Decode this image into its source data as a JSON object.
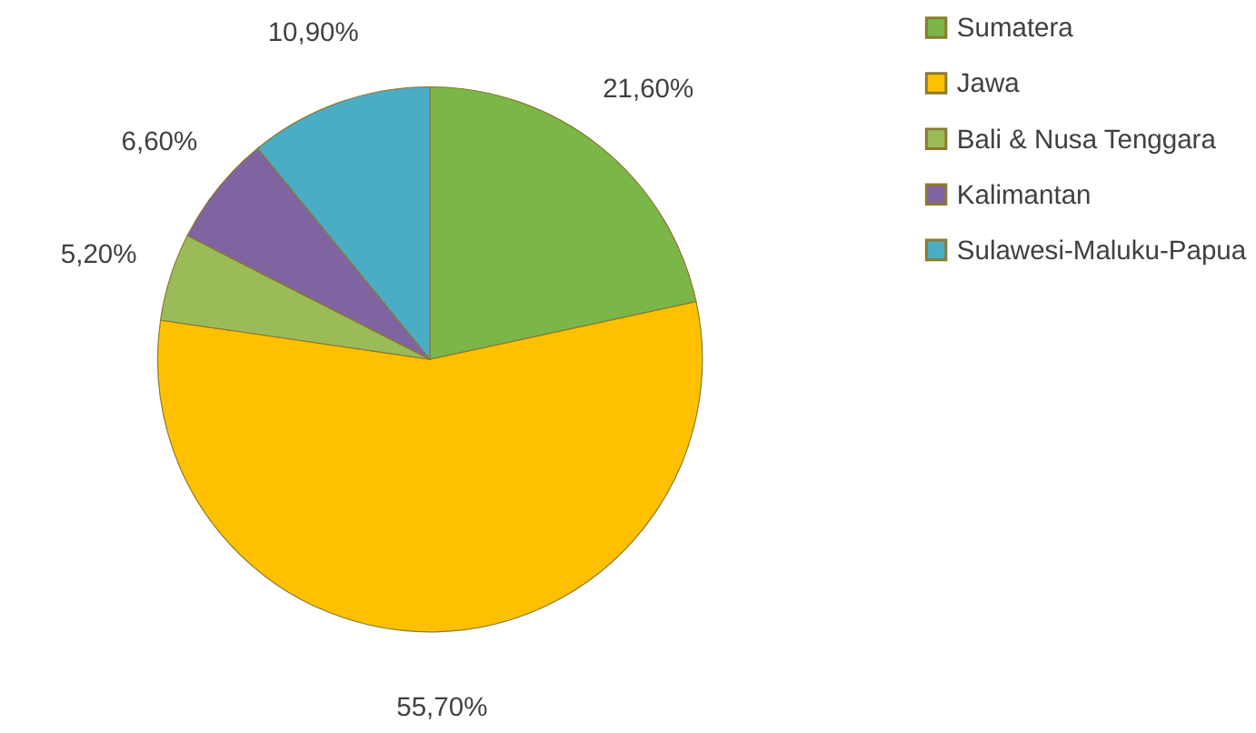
{
  "chart_data": {
    "type": "pie",
    "categories": [
      "Sumatera",
      "Jawa",
      "Bali & Nusa Tenggara",
      "Kalimantan",
      "Sulawesi-Maluku-Papua"
    ],
    "values": [
      21.6,
      55.7,
      5.2,
      6.6,
      10.9
    ],
    "value_labels": [
      "21,60%",
      "55,70%",
      "5,20%",
      "6,60%",
      "10,90%"
    ],
    "colors": [
      "#7ab648",
      "#ffc000",
      "#9bbb59",
      "#8064a2",
      "#4bacc6"
    ],
    "legend": "right"
  }
}
